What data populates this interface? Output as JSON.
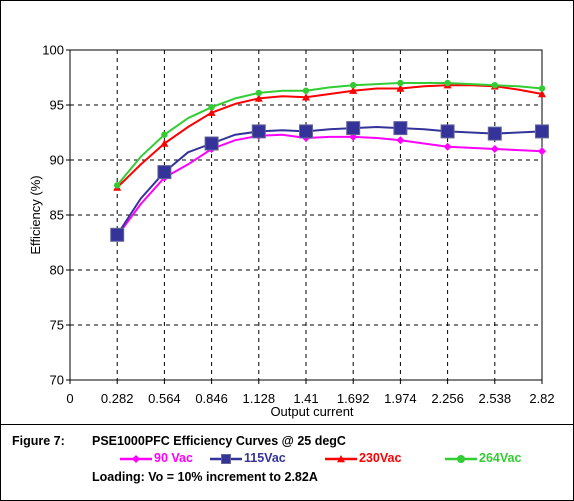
{
  "caption": {
    "figure_label": "Figure 7:",
    "title": "PSE1000PFC Efficiency Curves @ 25 degC",
    "loading": "Loading:  Vo = 10% increment to 2.82A"
  },
  "chart_data": {
    "type": "line",
    "xlabel": "Output current",
    "ylabel": "Efficiency (%)",
    "ylim": [
      70,
      100
    ],
    "yticks": [
      "70",
      "75",
      "80",
      "85",
      "90",
      "95",
      "100"
    ],
    "categories": [
      "0",
      "0.282",
      "0.564",
      "0.846",
      "1.128",
      "1.41",
      "1.692",
      "1.974",
      "2.256",
      "2.538",
      "2.82"
    ],
    "grid": true,
    "legend_position": "bottom",
    "series": [
      {
        "name": "90 Vac",
        "color": "#ff00ff",
        "marker": "diamond",
        "x": [
          0.282,
          0.423,
          0.564,
          0.705,
          0.846,
          0.987,
          1.128,
          1.269,
          1.41,
          1.551,
          1.692,
          1.833,
          1.974,
          2.115,
          2.256,
          2.397,
          2.538,
          2.679,
          2.82
        ],
        "values": [
          83.1,
          86.0,
          88.4,
          89.6,
          91.0,
          91.8,
          92.2,
          92.3,
          92.0,
          92.1,
          92.1,
          92.0,
          91.8,
          91.5,
          91.2,
          91.1,
          91.0,
          90.9,
          90.8
        ]
      },
      {
        "name": "115Vac",
        "color": "#333399",
        "marker": "square",
        "x": [
          0.282,
          0.423,
          0.564,
          0.705,
          0.846,
          0.987,
          1.128,
          1.269,
          1.41,
          1.551,
          1.692,
          1.833,
          1.974,
          2.115,
          2.256,
          2.397,
          2.538,
          2.679,
          2.82
        ],
        "values": [
          83.2,
          86.5,
          88.9,
          90.7,
          91.5,
          92.3,
          92.6,
          92.7,
          92.6,
          92.8,
          92.9,
          93.0,
          92.9,
          92.8,
          92.6,
          92.5,
          92.4,
          92.5,
          92.6
        ]
      },
      {
        "name": "230Vac",
        "color": "#ff0000",
        "marker": "triangle",
        "x": [
          0.282,
          0.423,
          0.564,
          0.705,
          0.846,
          0.987,
          1.128,
          1.269,
          1.41,
          1.551,
          1.692,
          1.833,
          1.974,
          2.115,
          2.256,
          2.397,
          2.538,
          2.679,
          2.82
        ],
        "values": [
          87.5,
          89.6,
          91.5,
          93.0,
          94.3,
          95.1,
          95.6,
          95.8,
          95.7,
          96.0,
          96.3,
          96.5,
          96.5,
          96.7,
          96.8,
          96.8,
          96.7,
          96.4,
          96.0
        ]
      },
      {
        "name": "264Vac",
        "color": "#33cc33",
        "marker": "circle",
        "x": [
          0.282,
          0.423,
          0.564,
          0.705,
          0.846,
          0.987,
          1.128,
          1.269,
          1.41,
          1.551,
          1.692,
          1.833,
          1.974,
          2.115,
          2.256,
          2.397,
          2.538,
          2.679,
          2.82
        ],
        "values": [
          87.7,
          90.3,
          92.3,
          93.8,
          94.8,
          95.6,
          96.1,
          96.3,
          96.3,
          96.6,
          96.8,
          96.9,
          97.0,
          97.0,
          97.0,
          96.9,
          96.8,
          96.7,
          96.5
        ]
      }
    ]
  }
}
